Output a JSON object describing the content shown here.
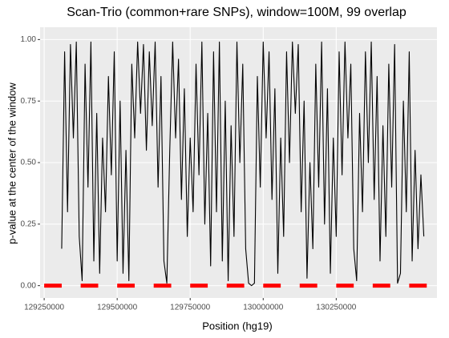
{
  "chart_data": {
    "type": "line",
    "title": "Scan-Trio (common+rare SNPs), window=100M, 99 overlap",
    "x_label": "Position (hg19)",
    "y_label": "p-value at the center of the window",
    "xlim": [
      129236000,
      130595000
    ],
    "xticks": [
      129250000,
      129500000,
      129750000,
      130000000,
      130250000
    ],
    "ylim": [
      -0.05,
      1.05
    ],
    "yticks": [
      {
        "value": 0,
        "label": "0.00"
      },
      {
        "value": 0.25,
        "label": "0.25"
      },
      {
        "value": 0.5,
        "label": "0.50"
      },
      {
        "value": 0.75,
        "label": "0.75"
      },
      {
        "value": 1,
        "label": "1.00"
      }
    ],
    "grid": true,
    "series": [
      {
        "color": "#000000",
        "x": [
          129310000,
          129320000,
          129330000,
          129340000,
          129350000,
          129360000,
          129370000,
          129380000,
          129390000,
          129400000,
          129410000,
          129420000,
          129430000,
          129440000,
          129450000,
          129460000,
          129470000,
          129480000,
          129490000,
          129500000,
          129510000,
          129520000,
          129530000,
          129540000,
          129550000,
          129560000,
          129570000,
          129580000,
          129590000,
          129600000,
          129610000,
          129620000,
          129630000,
          129640000,
          129650000,
          129660000,
          129670000,
          129680000,
          129690000,
          129700000,
          129710000,
          129720000,
          129730000,
          129740000,
          129750000,
          129760000,
          129770000,
          129780000,
          129790000,
          129800000,
          129810000,
          129820000,
          129830000,
          129840000,
          129850000,
          129860000,
          129870000,
          129880000,
          129890000,
          129900000,
          129910000,
          129920000,
          129930000,
          129940000,
          129950000,
          129960000,
          129970000,
          129980000,
          129990000,
          130000000,
          130010000,
          130020000,
          130030000,
          130040000,
          130050000,
          130060000,
          130070000,
          130080000,
          130090000,
          130100000,
          130110000,
          130120000,
          130130000,
          130140000,
          130150000,
          130160000,
          130170000,
          130180000,
          130190000,
          130200000,
          130210000,
          130220000,
          130230000,
          130240000,
          130250000,
          130260000,
          130270000,
          130280000,
          130290000,
          130300000,
          130310000,
          130320000,
          130330000,
          130340000,
          130350000,
          130360000,
          130370000,
          130380000,
          130390000,
          130400000,
          130410000,
          130420000,
          130430000,
          130440000,
          130450000,
          130460000,
          130470000,
          130480000,
          130490000,
          130500000,
          130510000,
          130520000,
          130530000,
          130540000,
          130550000
        ],
        "values": [
          0.15,
          0.95,
          0.3,
          0.98,
          0.6,
          0.99,
          0.2,
          0.02,
          0.9,
          0.4,
          0.99,
          0.1,
          0.7,
          0.05,
          0.6,
          0.3,
          0.85,
          0.45,
          0.95,
          0.1,
          0.75,
          0.05,
          0.55,
          0.02,
          0.9,
          0.6,
          0.99,
          0.7,
          0.98,
          0.55,
          0.95,
          0.65,
          0.99,
          0.4,
          0.85,
          0.1,
          0.01,
          0.55,
          0.99,
          0.6,
          0.92,
          0.35,
          0.8,
          0.2,
          0.6,
          0.3,
          0.9,
          0.45,
          0.99,
          0.25,
          0.7,
          0.08,
          0.95,
          0.3,
          0.99,
          0.1,
          0.75,
          0.02,
          0.65,
          0.2,
          0.99,
          0.5,
          0.9,
          0.15,
          0.01,
          0.0,
          0.01,
          0.85,
          0.4,
          0.99,
          0.6,
          0.95,
          0.35,
          0.8,
          0.05,
          0.6,
          0.2,
          0.95,
          0.5,
          0.99,
          0.7,
          0.98,
          0.3,
          0.75,
          0.03,
          0.5,
          0.15,
          0.9,
          0.4,
          0.99,
          0.25,
          0.8,
          0.05,
          0.6,
          0.2,
          0.95,
          0.45,
          0.99,
          0.6,
          0.9,
          0.15,
          0.02,
          0.7,
          0.3,
          0.95,
          0.5,
          0.99,
          0.35,
          0.85,
          0.1,
          0.65,
          0.2,
          0.9,
          0.4,
          0.98,
          0.01,
          0.05,
          0.75,
          0.3,
          0.95,
          0.1,
          0.55,
          0.15,
          0.45,
          0.2
        ]
      }
    ],
    "segments": {
      "color": "#ff0000",
      "y": 0,
      "starts": [
        129250000,
        129375000,
        129500000,
        129625000,
        129750000,
        129875000,
        130000000,
        130125000,
        130250000,
        130375000,
        130500000
      ],
      "ends": [
        129310000,
        129435000,
        129560000,
        129685000,
        129810000,
        129935000,
        130060000,
        130185000,
        130310000,
        130435000,
        130560000
      ]
    }
  }
}
